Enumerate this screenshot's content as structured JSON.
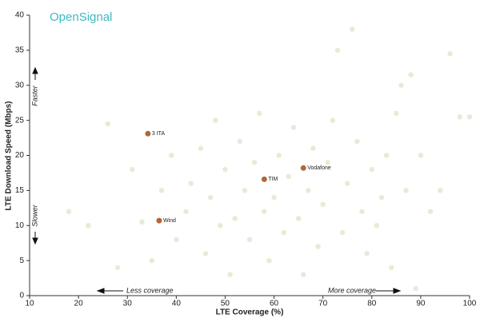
{
  "chart_data": {
    "type": "scatter",
    "brand": "OpenSignal",
    "x_label": "LTE Coverage (%)",
    "y_label": "LTE Download Speed (Mbps)",
    "annotations": {
      "faster": "Faster",
      "slower": "Slower",
      "less": "Less coverage",
      "more": "More coverage"
    },
    "xlim": [
      10,
      100
    ],
    "xticks": [
      10,
      20,
      30,
      40,
      50,
      60,
      70,
      80,
      90,
      100
    ],
    "ylim": [
      0,
      40
    ],
    "yticks": [
      0,
      5,
      10,
      15,
      20,
      25,
      30,
      35,
      40
    ],
    "series": [
      {
        "color": "#d8e4c6",
        "x": [
          18,
          22,
          26,
          28,
          31,
          33,
          35,
          37,
          39,
          40,
          42,
          43,
          45,
          46,
          47,
          48,
          49,
          50,
          51,
          52,
          53,
          54,
          55,
          56,
          57,
          58,
          59,
          60,
          61,
          62,
          63,
          64,
          65,
          66,
          67,
          68,
          69,
          70,
          71,
          72,
          73,
          74,
          75,
          76,
          77,
          78,
          79,
          80,
          81,
          82,
          83,
          84,
          85,
          86,
          87,
          88,
          89,
          90,
          92,
          94,
          96,
          98,
          100
        ],
        "y": [
          12,
          10,
          24.5,
          4,
          18,
          10.5,
          5,
          15,
          20,
          8,
          12,
          16,
          21,
          6,
          14,
          25,
          10,
          18,
          3,
          11,
          22,
          15,
          8,
          19,
          26,
          12,
          5,
          14,
          20,
          9,
          17,
          24,
          11,
          3,
          15,
          21,
          7,
          13,
          19,
          25,
          35,
          9,
          16,
          38,
          22,
          12,
          6,
          18,
          10,
          14,
          20,
          4,
          26,
          30,
          15,
          31.5,
          1,
          20,
          12,
          15,
          34.5,
          25.5,
          25.5
        ]
      },
      {
        "color": "#b0683a",
        "labels": [
          "3 ITA",
          "TIM",
          "Vodafone",
          "Wind"
        ],
        "x": [
          34.2,
          58.0,
          66.0,
          36.5
        ],
        "y": [
          23.1,
          16.6,
          18.2,
          10.7
        ]
      }
    ]
  }
}
